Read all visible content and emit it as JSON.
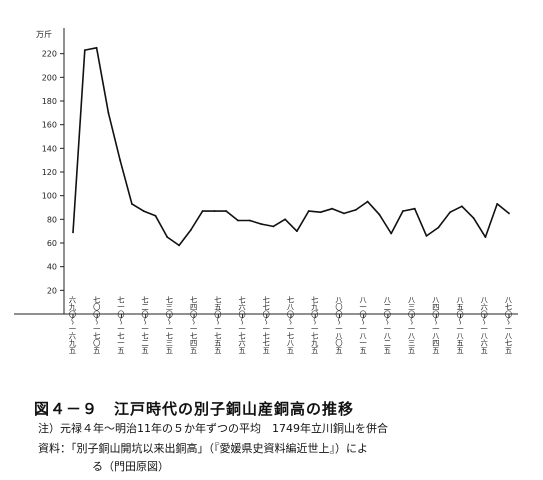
{
  "chart_data": {
    "type": "line",
    "unit_label": "万斤",
    "ylim": [
      0,
      240
    ],
    "yticks": [
      20,
      40,
      60,
      80,
      100,
      120,
      140,
      160,
      180,
      200,
      220
    ],
    "grid": false,
    "legend": "none",
    "line_color": "#111111",
    "x_labels": [
      "六九〇〜一六九五",
      "七〇〇〜一七〇五",
      "七一〇〜一七一五",
      "七二〇〜一七二五",
      "七三〇〜一七三五",
      "七四〇〜一七四五",
      "七五〇〜一七五五",
      "七六〇〜一七六五",
      "七七〇〜一七七五",
      "七八〇〜一七八五",
      "七九〇〜一七九五",
      "八〇〇〜一八〇五",
      "八一〇〜一八一五",
      "八二〇〜一八二五",
      "八三〇〜一八三五",
      "八四〇〜一八四五",
      "八五〇〜一八五五",
      "八六〇〜一八六五",
      "八七〇〜一八七五"
    ],
    "values": [
      69,
      223,
      225,
      170,
      130,
      93,
      87,
      83,
      65,
      58,
      71,
      87,
      87,
      87,
      79,
      79,
      76,
      74,
      80,
      70,
      87,
      86,
      89,
      85,
      88,
      95,
      84,
      68,
      87,
      89,
      66,
      73,
      86,
      91,
      81,
      65,
      93,
      85
    ]
  },
  "caption": {
    "figure_title": "図４－９　江戸時代の別子銅山産銅高の推移",
    "note": "注）元禄４年～明治11年の５か年ずつの平均　1749年立川銅山を併合",
    "source_line1": "資料：「別子銅山開坑以来出銅高」（『愛媛県史資料編近世上』）によ",
    "source_line2": "る（門田原図）"
  }
}
